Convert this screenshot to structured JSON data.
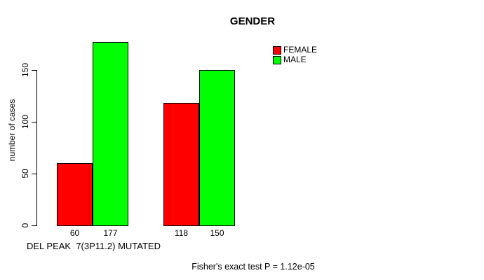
{
  "chart_data": {
    "type": "bar",
    "title": "GENDER",
    "ylabel": "number of cases",
    "xlabel": "DEL PEAK  7(3P11.2) MUTATED",
    "series": [
      {
        "name": "FEMALE",
        "color": "#FF0000",
        "values": [
          60,
          118
        ]
      },
      {
        "name": "MALE",
        "color": "#00FF00",
        "values": [
          177,
          150
        ]
      }
    ],
    "bar_value_labels": [
      "60",
      "177",
      "118",
      "150"
    ],
    "yticks": [
      0,
      50,
      100,
      150
    ],
    "ylim": [
      0,
      185
    ],
    "grid": false,
    "legend_position": "top-right",
    "annotation": "Fisher's exact test P = 1.12e-05"
  },
  "colors": {
    "background": "#FFFFFF",
    "text": "#000000",
    "axis": "#000000"
  }
}
